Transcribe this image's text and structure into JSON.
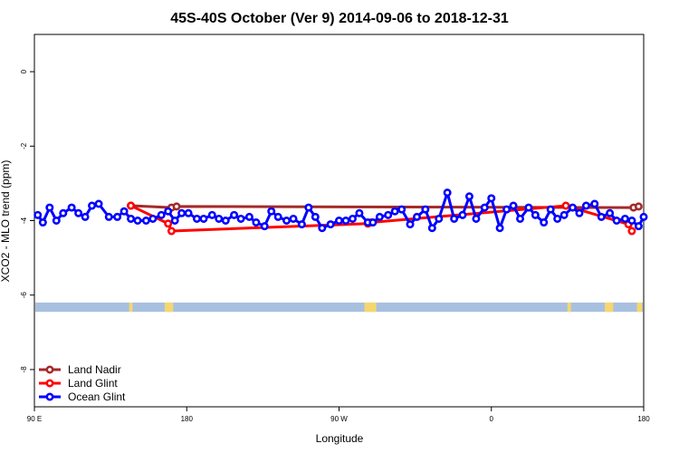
{
  "chart_data": {
    "type": "line",
    "title": "45S-40S October (Ver 9)   2014-09-06 to 2018-12-31",
    "xlabel": "Longitude",
    "ylabel": "XCO2 - MLO trend (ppm)",
    "xlim": [
      90,
      450
    ],
    "ylim": [
      -9,
      1
    ],
    "x_ticks": [
      {
        "value": 90,
        "label": "90 E"
      },
      {
        "value": 180,
        "label": "180"
      },
      {
        "value": 270,
        "label": "90 W"
      },
      {
        "value": 360,
        "label": "0"
      },
      {
        "value": 450,
        "label": "180"
      }
    ],
    "y_ticks": [
      {
        "value": 0,
        "label": "0"
      },
      {
        "value": -2,
        "label": "-2"
      },
      {
        "value": -4,
        "label": "-4"
      },
      {
        "value": -6,
        "label": "-6"
      },
      {
        "value": -8,
        "label": "-8"
      }
    ],
    "legend_position": "bottom-left",
    "land_strip": {
      "y_range": [
        -6.45,
        -6.2
      ],
      "ocean_color": "#a8c0e0",
      "land_color": "#f5d76e",
      "land_segments": [
        [
          146,
          148
        ],
        [
          167,
          172
        ],
        [
          285,
          292
        ],
        [
          405,
          407
        ],
        [
          427,
          432
        ],
        [
          446,
          449
        ]
      ]
    },
    "series": [
      {
        "name": "Land Nadir",
        "color": "#a52a2a",
        "x": [
          147,
          171,
          174,
          444,
          447
        ],
        "y": [
          -3.6,
          -3.65,
          -3.62,
          -3.65,
          -3.62
        ]
      },
      {
        "name": "Land Glint",
        "color": "#ff0000",
        "x": [
          147,
          169,
          171,
          287,
          289,
          404,
          441,
          443
        ],
        "y": [
          -3.6,
          -4.08,
          -4.28,
          -4.08,
          -4.05,
          -3.6,
          -4.1,
          -4.28
        ]
      },
      {
        "name": "Ocean Glint",
        "color": "#0000ff",
        "x": [
          92,
          95,
          99,
          103,
          107,
          112,
          116,
          120,
          124,
          128,
          134,
          139,
          143,
          147,
          151,
          156,
          160,
          165,
          169,
          173,
          177,
          181,
          186,
          190,
          195,
          199,
          203,
          208,
          212,
          217,
          221,
          226,
          230,
          234,
          239,
          243,
          248,
          252,
          256,
          260,
          265,
          270,
          274,
          278,
          282,
          287,
          290,
          294,
          299,
          303,
          307,
          312,
          316,
          321,
          325,
          329,
          334,
          338,
          343,
          347,
          351,
          356,
          360,
          365,
          369,
          373,
          377,
          382,
          386,
          391,
          395,
          399,
          403,
          408,
          412,
          416,
          421,
          425,
          430,
          434,
          439,
          443,
          447,
          450
        ],
        "y": [
          -3.85,
          -4.05,
          -3.65,
          -4.0,
          -3.8,
          -3.65,
          -3.8,
          -3.9,
          -3.6,
          -3.55,
          -3.9,
          -3.9,
          -3.75,
          -3.95,
          -4.0,
          -4.0,
          -3.95,
          -3.85,
          -3.75,
          -4.0,
          -3.8,
          -3.8,
          -3.95,
          -3.95,
          -3.85,
          -3.95,
          -4.0,
          -3.85,
          -3.95,
          -3.9,
          -4.05,
          -4.15,
          -3.75,
          -3.9,
          -4.0,
          -3.95,
          -4.1,
          -3.65,
          -3.9,
          -4.2,
          -4.1,
          -4.0,
          -4.0,
          -3.95,
          -3.8,
          -4.05,
          -4.05,
          -3.9,
          -3.85,
          -3.75,
          -3.7,
          -4.1,
          -3.9,
          -3.7,
          -4.2,
          -3.95,
          -3.25,
          -3.95,
          -3.85,
          -3.35,
          -3.95,
          -3.65,
          -3.4,
          -4.2,
          -3.7,
          -3.6,
          -3.95,
          -3.65,
          -3.85,
          -4.05,
          -3.7,
          -3.95,
          -3.85,
          -3.65,
          -3.8,
          -3.6,
          -3.55,
          -3.9,
          -3.8,
          -4.0,
          -3.95,
          -4.0,
          -4.15,
          -3.9
        ]
      }
    ]
  }
}
